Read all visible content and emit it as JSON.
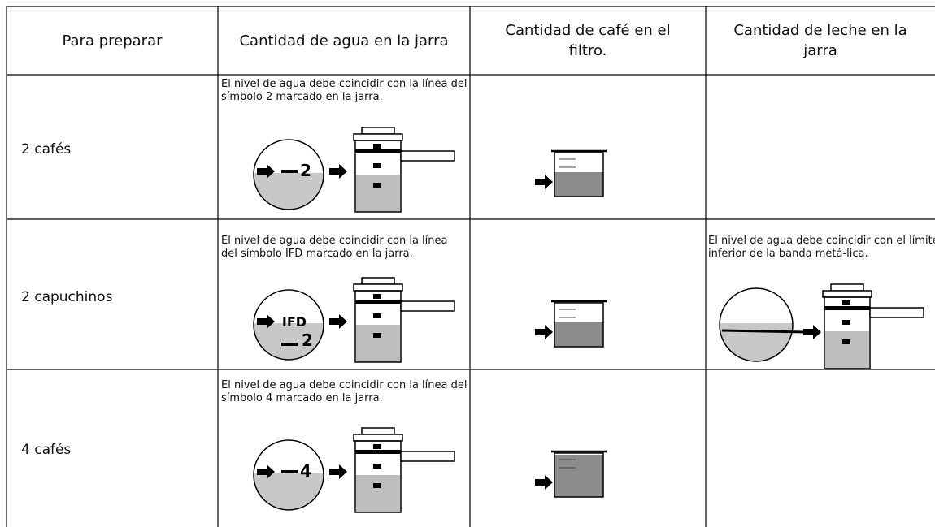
{
  "header": [
    "Para preparar",
    "Cantidad de agua en la jarra",
    "Cantidad de café en el filtro.",
    "Cantidad de leche en la jarra"
  ],
  "rows": [
    {
      "label": "2 cafés",
      "water_note": "El nivel de agua debe coincidir con la línea del símbolo 2 marcado en la jarra.",
      "water_symbols": [
        "2"
      ]
    },
    {
      "label": "2 capuchinos",
      "water_note": "El nivel de agua debe coincidir con la línea del símbolo  IFD marcado en la jarra.",
      "water_symbols": [
        "IFD",
        "2"
      ],
      "milk_note": "El nivel de agua debe coincidir con el límite inferior de la banda metá-lica."
    },
    {
      "label": "4 cafés",
      "water_note": "El nivel de agua debe coincidir con la línea del símbolo 4 marcado en la jarra.",
      "water_symbols": [
        "4"
      ]
    }
  ]
}
